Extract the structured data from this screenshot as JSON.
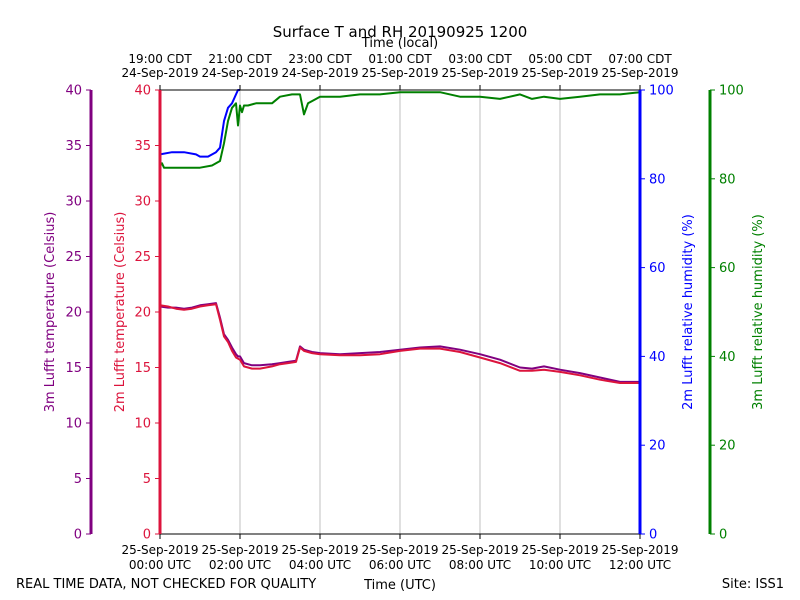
{
  "chart_data": {
    "type": "line",
    "title": "Surface T and RH 20190925 1200",
    "top_xlabel": "Time (local)",
    "xlabel": "Time (UTC)",
    "footer_left": "REAL TIME DATA, NOT CHECKED FOR QUALITY",
    "footer_right": "Site: ISS1",
    "x_utc_ticks": [
      [
        "25-Sep-2019",
        "00:00 UTC"
      ],
      [
        "25-Sep-2019",
        "02:00 UTC"
      ],
      [
        "25-Sep-2019",
        "04:00 UTC"
      ],
      [
        "25-Sep-2019",
        "06:00 UTC"
      ],
      [
        "25-Sep-2019",
        "08:00 UTC"
      ],
      [
        "25-Sep-2019",
        "10:00 UTC"
      ],
      [
        "25-Sep-2019",
        "12:00 UTC"
      ]
    ],
    "x_local_ticks": [
      [
        "19:00 CDT",
        "24-Sep-2019"
      ],
      [
        "21:00 CDT",
        "24-Sep-2019"
      ],
      [
        "23:00 CDT",
        "24-Sep-2019"
      ],
      [
        "01:00 CDT",
        "25-Sep-2019"
      ],
      [
        "03:00 CDT",
        "25-Sep-2019"
      ],
      [
        "05:00 CDT",
        "25-Sep-2019"
      ],
      [
        "07:00 CDT",
        "25-Sep-2019"
      ]
    ],
    "grid": true,
    "xlim_hours_utc": [
      0,
      12
    ],
    "axes": {
      "t3m": {
        "label": "3m Lufft temperature (Celsius)",
        "ylim": [
          0,
          40
        ],
        "ticks": [
          0,
          5,
          10,
          15,
          20,
          25,
          30,
          35,
          40
        ],
        "color": "#800080"
      },
      "t2m": {
        "label": "2m Lufft temperature (Celsius)",
        "ylim": [
          0,
          40
        ],
        "ticks": [
          0,
          5,
          10,
          15,
          20,
          25,
          30,
          35,
          40
        ],
        "color": "#dc143c"
      },
      "rh2m": {
        "label": "2m Lufft relative humidity (%)",
        "ylim": [
          0,
          100
        ],
        "ticks": [
          0,
          20,
          40,
          60,
          80,
          100
        ],
        "color": "#0000ff"
      },
      "rh3m": {
        "label": "3m Lufft relative humidity (%)",
        "ylim": [
          0,
          100
        ],
        "ticks": [
          0,
          20,
          40,
          60,
          80,
          100
        ],
        "color": "#008000"
      }
    },
    "series": [
      {
        "axis": "t3m",
        "color": "#800080",
        "x": [
          0,
          0.2,
          0.4,
          0.6,
          0.8,
          1.0,
          1.2,
          1.4,
          1.5,
          1.6,
          1.7,
          1.8,
          1.9,
          1.95,
          2.0,
          2.1,
          2.3,
          2.5,
          2.8,
          3.0,
          3.2,
          3.4,
          3.5,
          3.6,
          3.8,
          4.0,
          4.5,
          5.0,
          5.5,
          6.0,
          6.5,
          7.0,
          7.5,
          8.0,
          8.5,
          9.0,
          9.3,
          9.6,
          10.0,
          10.5,
          11.0,
          11.5,
          12.0
        ],
        "y": [
          20.5,
          20.4,
          20.4,
          20.3,
          20.4,
          20.6,
          20.7,
          20.8,
          19.5,
          18.0,
          17.5,
          16.8,
          16.2,
          16.0,
          16.0,
          15.4,
          15.2,
          15.2,
          15.3,
          15.4,
          15.5,
          15.6,
          16.9,
          16.6,
          16.4,
          16.3,
          16.2,
          16.3,
          16.4,
          16.6,
          16.8,
          16.9,
          16.6,
          16.2,
          15.7,
          15.0,
          14.9,
          15.1,
          14.8,
          14.5,
          14.1,
          13.7,
          13.7
        ]
      },
      {
        "axis": "t2m",
        "color": "#dc143c",
        "x": [
          0,
          0.2,
          0.4,
          0.6,
          0.8,
          1.0,
          1.2,
          1.4,
          1.5,
          1.6,
          1.7,
          1.8,
          1.9,
          1.95,
          2.0,
          2.1,
          2.3,
          2.5,
          2.8,
          3.0,
          3.2,
          3.4,
          3.5,
          3.6,
          3.8,
          4.0,
          4.5,
          5.0,
          5.5,
          6.0,
          6.5,
          7.0,
          7.5,
          8.0,
          8.5,
          9.0,
          9.3,
          9.6,
          10.0,
          10.5,
          11.0,
          11.5,
          12.0
        ],
        "y": [
          20.6,
          20.5,
          20.3,
          20.2,
          20.3,
          20.5,
          20.6,
          20.7,
          19.3,
          17.8,
          17.3,
          16.5,
          15.9,
          15.8,
          15.7,
          15.1,
          14.9,
          14.9,
          15.1,
          15.3,
          15.4,
          15.5,
          16.8,
          16.5,
          16.3,
          16.2,
          16.1,
          16.1,
          16.2,
          16.5,
          16.7,
          16.7,
          16.4,
          15.9,
          15.4,
          14.7,
          14.7,
          14.8,
          14.6,
          14.3,
          13.9,
          13.6,
          13.6
        ]
      },
      {
        "axis": "rh2m",
        "color": "#0000ff",
        "x": [
          0,
          0.3,
          0.6,
          0.9,
          1.0,
          1.2,
          1.4,
          1.5,
          1.55,
          1.6,
          1.7,
          1.8,
          1.9,
          1.95,
          2.0
        ],
        "y": [
          85.5,
          86.0,
          86.0,
          85.5,
          85.0,
          85.0,
          86.0,
          87.0,
          90.0,
          93.0,
          96.0,
          97.0,
          99.0,
          100.0,
          100.0
        ]
      },
      {
        "axis": "rh3m",
        "color": "#008000",
        "x": [
          0,
          0.05,
          0.1,
          0.3,
          0.6,
          0.9,
          1.0,
          1.3,
          1.5,
          1.55,
          1.6,
          1.7,
          1.8,
          1.9,
          1.95,
          2.0,
          2.05,
          2.1,
          2.2,
          2.4,
          2.6,
          2.8,
          3.0,
          3.3,
          3.5,
          3.6,
          3.7,
          3.8,
          4.0,
          4.5,
          5.0,
          5.5,
          6.0,
          6.5,
          7.0,
          7.5,
          8.0,
          8.5,
          9.0,
          9.3,
          9.6,
          10.0,
          10.5,
          11.0,
          11.5,
          12.0
        ],
        "y": [
          83.0,
          83.5,
          82.5,
          82.5,
          82.5,
          82.5,
          82.5,
          83.0,
          84.0,
          86.0,
          88.0,
          93.0,
          96.0,
          97.0,
          92.0,
          96.5,
          95.0,
          96.5,
          96.5,
          97.0,
          97.0,
          97.0,
          98.5,
          99.0,
          99.0,
          94.5,
          97.0,
          97.5,
          98.5,
          98.5,
          99.0,
          99.0,
          99.5,
          99.5,
          99.5,
          98.5,
          98.5,
          98.0,
          99.0,
          98.0,
          98.5,
          98.0,
          98.5,
          99.0,
          99.0,
          99.5
        ]
      }
    ]
  }
}
